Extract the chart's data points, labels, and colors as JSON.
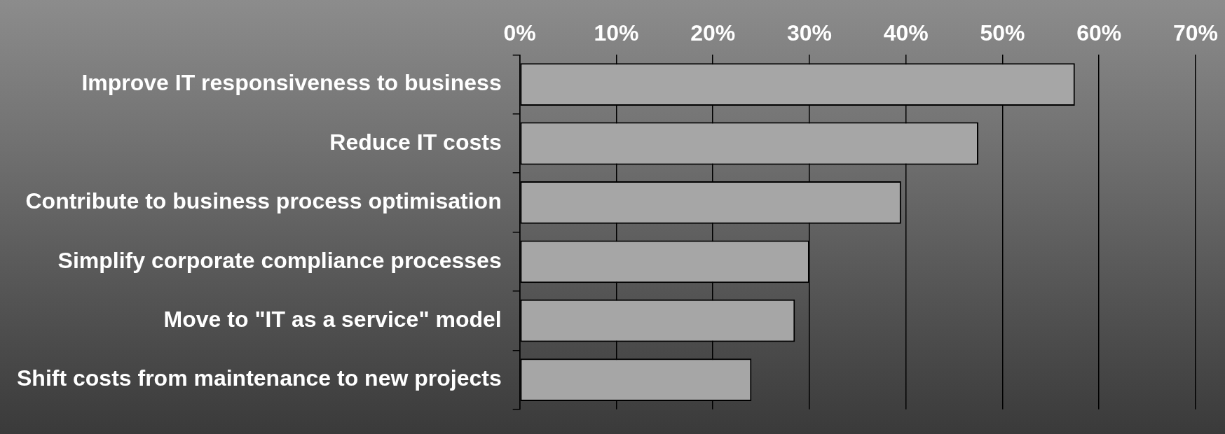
{
  "chart_data": {
    "type": "bar",
    "orientation": "horizontal",
    "categories": [
      "Improve IT responsiveness to business",
      "Reduce IT costs",
      "Contribute to business process optimisation",
      "Simplify corporate compliance processes",
      "Move to \"IT as a service\" model",
      "Shift costs from maintenance to new projects"
    ],
    "values": [
      57.5,
      47.5,
      39.5,
      30,
      28.5,
      24
    ],
    "color": "#a6a6a6",
    "xlim": [
      0,
      70
    ],
    "xticks": [
      {
        "value": 0,
        "label": "0%"
      },
      {
        "value": 10,
        "label": "10%"
      },
      {
        "value": 20,
        "label": "20%"
      },
      {
        "value": 30,
        "label": "30%"
      },
      {
        "value": 40,
        "label": "40%"
      },
      {
        "value": 50,
        "label": "50%"
      },
      {
        "value": 60,
        "label": "60%"
      },
      {
        "value": 70,
        "label": "70%"
      }
    ],
    "grid": "x",
    "legend": false
  }
}
